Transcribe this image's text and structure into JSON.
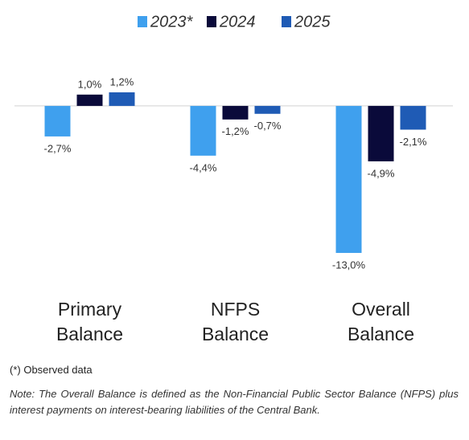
{
  "chart_data": {
    "type": "bar",
    "categories": [
      "Primary Balance",
      "NFPS Balance",
      "Overall Balance"
    ],
    "series": [
      {
        "name": "2023*",
        "color": "#3fa0ee",
        "values": [
          -2.7,
          -4.4,
          -13.0
        ],
        "value_labels": [
          "-2,7%",
          "-4,4%",
          "-13,0%"
        ]
      },
      {
        "name": "2024",
        "color": "#0a0a3a",
        "values": [
          1.0,
          -1.2,
          -4.9
        ],
        "value_labels": [
          "1,0%",
          "-1,2%",
          "-4,9%"
        ]
      },
      {
        "name": "2025",
        "color": "#1f5bb5",
        "values": [
          1.2,
          -0.7,
          -2.1
        ],
        "value_labels": [
          "1,2%",
          "-0,7%",
          "-2,1%"
        ]
      }
    ],
    "footnote": "(*) Observed data",
    "note": "Note: The Overall Balance is defined as the Non-Financial Public Sector Balance (NFPS) plus interest payments on interest-bearing liabilities of the Central Bank."
  }
}
